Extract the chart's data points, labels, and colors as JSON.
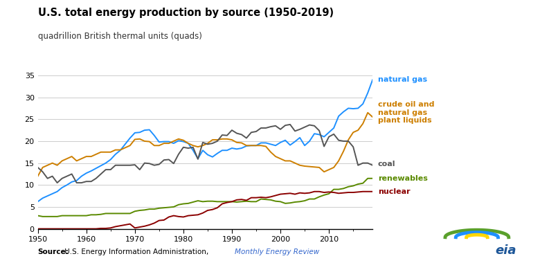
{
  "title": "U.S. total energy production by source (1950-2019)",
  "ylabel": "quadrillion British thermal units (quads)",
  "ylim": [
    0,
    36
  ],
  "yticks": [
    0,
    5,
    10,
    15,
    20,
    25,
    30,
    35
  ],
  "xlim": [
    1950,
    2019
  ],
  "xticks": [
    1950,
    1960,
    1970,
    1980,
    1990,
    2000,
    2010
  ],
  "background_color": "#ffffff",
  "series": {
    "natural_gas": {
      "color": "#1E90FF",
      "label": "natural gas",
      "years": [
        1950,
        1951,
        1952,
        1953,
        1954,
        1955,
        1956,
        1957,
        1958,
        1959,
        1960,
        1961,
        1962,
        1963,
        1964,
        1965,
        1966,
        1967,
        1968,
        1969,
        1970,
        1971,
        1972,
        1973,
        1974,
        1975,
        1976,
        1977,
        1978,
        1979,
        1980,
        1981,
        1982,
        1983,
        1984,
        1985,
        1986,
        1987,
        1988,
        1989,
        1990,
        1991,
        1992,
        1993,
        1994,
        1995,
        1996,
        1997,
        1998,
        1999,
        2000,
        2001,
        2002,
        2003,
        2004,
        2005,
        2006,
        2007,
        2008,
        2009,
        2010,
        2011,
        2012,
        2013,
        2014,
        2015,
        2016,
        2017,
        2018,
        2019
      ],
      "values": [
        6.2,
        7.0,
        7.5,
        8.0,
        8.5,
        9.4,
        10.0,
        10.7,
        11.0,
        12.0,
        12.7,
        13.2,
        13.8,
        14.4,
        15.0,
        15.8,
        17.0,
        17.9,
        19.3,
        20.7,
        21.9,
        22.0,
        22.5,
        22.6,
        21.3,
        19.8,
        19.9,
        19.9,
        19.5,
        20.1,
        19.9,
        19.5,
        17.9,
        16.0,
        17.9,
        16.9,
        16.4,
        17.2,
        17.9,
        17.9,
        18.4,
        18.2,
        18.4,
        18.9,
        19.0,
        19.0,
        19.6,
        19.6,
        19.3,
        19.0,
        19.7,
        20.2,
        19.1,
        19.9,
        20.8,
        19.0,
        20.0,
        21.7,
        21.5,
        21.0,
        22.0,
        23.0,
        25.7,
        26.7,
        27.5,
        27.4,
        27.5,
        28.5,
        31.0,
        34.0
      ]
    },
    "crude_oil": {
      "color": "#CD7F00",
      "label": "crude oil and\nnatural gas\nplant liquids",
      "years": [
        1950,
        1951,
        1952,
        1953,
        1954,
        1955,
        1956,
        1957,
        1958,
        1959,
        1960,
        1961,
        1962,
        1963,
        1964,
        1965,
        1966,
        1967,
        1968,
        1969,
        1970,
        1971,
        1972,
        1973,
        1974,
        1975,
        1976,
        1977,
        1978,
        1979,
        1980,
        1981,
        1982,
        1983,
        1984,
        1985,
        1986,
        1987,
        1988,
        1989,
        1990,
        1991,
        1992,
        1993,
        1994,
        1995,
        1996,
        1997,
        1998,
        1999,
        2000,
        2001,
        2002,
        2003,
        2004,
        2005,
        2006,
        2007,
        2008,
        2009,
        2010,
        2011,
        2012,
        2013,
        2014,
        2015,
        2016,
        2017,
        2018,
        2019
      ],
      "values": [
        12.0,
        14.0,
        14.5,
        15.0,
        14.5,
        15.5,
        16.0,
        16.5,
        15.5,
        16.0,
        16.5,
        16.5,
        17.0,
        17.5,
        17.5,
        17.5,
        18.0,
        18.0,
        18.5,
        19.0,
        20.4,
        20.5,
        20.0,
        19.9,
        19.0,
        19.0,
        19.5,
        19.5,
        20.0,
        20.5,
        20.2,
        19.5,
        19.0,
        18.7,
        19.0,
        19.5,
        20.3,
        20.3,
        20.5,
        20.5,
        20.3,
        19.7,
        19.6,
        19.0,
        19.0,
        19.0,
        19.0,
        18.8,
        17.5,
        16.5,
        16.0,
        15.5,
        15.5,
        15.0,
        14.5,
        14.3,
        14.2,
        14.1,
        14.0,
        13.0,
        13.5,
        14.0,
        15.5,
        17.7,
        20.3,
        22.0,
        22.5,
        24.0,
        26.5,
        25.5
      ]
    },
    "coal": {
      "color": "#555555",
      "label": "coal",
      "years": [
        1950,
        1951,
        1952,
        1953,
        1954,
        1955,
        1956,
        1957,
        1958,
        1959,
        1960,
        1961,
        1962,
        1963,
        1964,
        1965,
        1966,
        1967,
        1968,
        1969,
        1970,
        1971,
        1972,
        1973,
        1974,
        1975,
        1976,
        1977,
        1978,
        1979,
        1980,
        1981,
        1982,
        1983,
        1984,
        1985,
        1986,
        1987,
        1988,
        1989,
        1990,
        1991,
        1992,
        1993,
        1994,
        1995,
        1996,
        1997,
        1998,
        1999,
        2000,
        2001,
        2002,
        2003,
        2004,
        2005,
        2006,
        2007,
        2008,
        2009,
        2010,
        2011,
        2012,
        2013,
        2014,
        2015,
        2016,
        2017,
        2018,
        2019
      ],
      "values": [
        14.0,
        13.0,
        11.5,
        12.0,
        10.5,
        11.5,
        12.0,
        12.5,
        10.5,
        10.5,
        10.8,
        10.8,
        11.5,
        12.5,
        13.5,
        13.5,
        14.5,
        14.5,
        14.5,
        14.5,
        14.6,
        13.5,
        15.0,
        14.9,
        14.5,
        14.7,
        15.7,
        15.8,
        14.9,
        17.0,
        18.6,
        18.4,
        18.6,
        15.9,
        19.7,
        19.3,
        19.5,
        20.0,
        21.4,
        21.3,
        22.5,
        21.8,
        21.5,
        20.7,
        22.0,
        22.2,
        23.0,
        23.0,
        23.3,
        23.5,
        22.7,
        23.6,
        23.8,
        22.3,
        22.7,
        23.2,
        23.7,
        23.5,
        22.4,
        18.8,
        21.0,
        21.6,
        20.2,
        20.0,
        20.0,
        18.7,
        14.5,
        15.0,
        15.0,
        14.5
      ]
    },
    "renewables": {
      "color": "#5A8A00",
      "label": "renewables",
      "years": [
        1950,
        1951,
        1952,
        1953,
        1954,
        1955,
        1956,
        1957,
        1958,
        1959,
        1960,
        1961,
        1962,
        1963,
        1964,
        1965,
        1966,
        1967,
        1968,
        1969,
        1970,
        1971,
        1972,
        1973,
        1974,
        1975,
        1976,
        1977,
        1978,
        1979,
        1980,
        1981,
        1982,
        1983,
        1984,
        1985,
        1986,
        1987,
        1988,
        1989,
        1990,
        1991,
        1992,
        1993,
        1994,
        1995,
        1996,
        1997,
        1998,
        1999,
        2000,
        2001,
        2002,
        2003,
        2004,
        2005,
        2006,
        2007,
        2008,
        2009,
        2010,
        2011,
        2012,
        2013,
        2014,
        2015,
        2016,
        2017,
        2018,
        2019
      ],
      "values": [
        3.0,
        2.8,
        2.8,
        2.8,
        2.8,
        3.0,
        3.0,
        3.0,
        3.0,
        3.0,
        3.0,
        3.2,
        3.2,
        3.3,
        3.5,
        3.5,
        3.5,
        3.5,
        3.5,
        3.5,
        4.0,
        4.2,
        4.3,
        4.5,
        4.5,
        4.7,
        4.8,
        4.9,
        5.0,
        5.5,
        5.7,
        5.8,
        6.1,
        6.4,
        6.2,
        6.3,
        6.3,
        6.2,
        6.2,
        6.2,
        6.2,
        6.1,
        6.2,
        6.3,
        6.2,
        6.2,
        6.8,
        6.7,
        6.6,
        6.3,
        6.2,
        5.8,
        5.9,
        6.1,
        6.2,
        6.4,
        6.8,
        6.8,
        7.3,
        7.7,
        8.0,
        9.0,
        9.0,
        9.2,
        9.6,
        9.8,
        10.2,
        10.4,
        11.5,
        11.5
      ]
    },
    "nuclear": {
      "color": "#8B0000",
      "label": "nuclear",
      "years": [
        1950,
        1951,
        1952,
        1953,
        1954,
        1955,
        1956,
        1957,
        1958,
        1959,
        1960,
        1961,
        1962,
        1963,
        1964,
        1965,
        1966,
        1967,
        1968,
        1969,
        1970,
        1971,
        1972,
        1973,
        1974,
        1975,
        1976,
        1977,
        1978,
        1979,
        1980,
        1981,
        1982,
        1983,
        1984,
        1985,
        1986,
        1987,
        1988,
        1989,
        1990,
        1991,
        1992,
        1993,
        1994,
        1995,
        1996,
        1997,
        1998,
        1999,
        2000,
        2001,
        2002,
        2003,
        2004,
        2005,
        2006,
        2007,
        2008,
        2009,
        2010,
        2011,
        2012,
        2013,
        2014,
        2015,
        2016,
        2017,
        2018,
        2019
      ],
      "values": [
        0.0,
        0.0,
        0.0,
        0.0,
        0.0,
        0.0,
        0.0,
        0.0,
        0.0,
        0.0,
        0.0,
        0.0,
        0.0,
        0.1,
        0.1,
        0.2,
        0.5,
        0.7,
        0.9,
        1.1,
        0.2,
        0.4,
        0.6,
        0.9,
        1.3,
        1.9,
        2.0,
        2.7,
        3.0,
        2.8,
        2.7,
        3.0,
        3.1,
        3.2,
        3.6,
        4.2,
        4.4,
        4.8,
        5.7,
        6.0,
        6.2,
        6.6,
        6.7,
        6.5,
        7.1,
        7.1,
        7.2,
        7.1,
        7.3,
        7.6,
        7.9,
        8.0,
        8.1,
        7.9,
        8.2,
        8.1,
        8.2,
        8.5,
        8.5,
        8.3,
        8.4,
        8.3,
        8.1,
        8.2,
        8.3,
        8.3,
        8.4,
        8.5,
        8.5,
        8.5
      ]
    }
  },
  "right_labels": [
    {
      "key": "natural_gas",
      "text": "natural gas",
      "color": "#1E90FF",
      "y": 34.0
    },
    {
      "key": "crude_oil",
      "text": "crude oil and\nnatural gas\nplant liquids",
      "color": "#CD7F00",
      "y": 26.5
    },
    {
      "key": "coal",
      "text": "coal",
      "color": "#555555",
      "y": 14.8
    },
    {
      "key": "renewables",
      "text": "renewables",
      "color": "#5A8A00",
      "y": 11.5
    },
    {
      "key": "nuclear",
      "text": "nuclear",
      "color": "#8B0000",
      "y": 8.5
    }
  ]
}
